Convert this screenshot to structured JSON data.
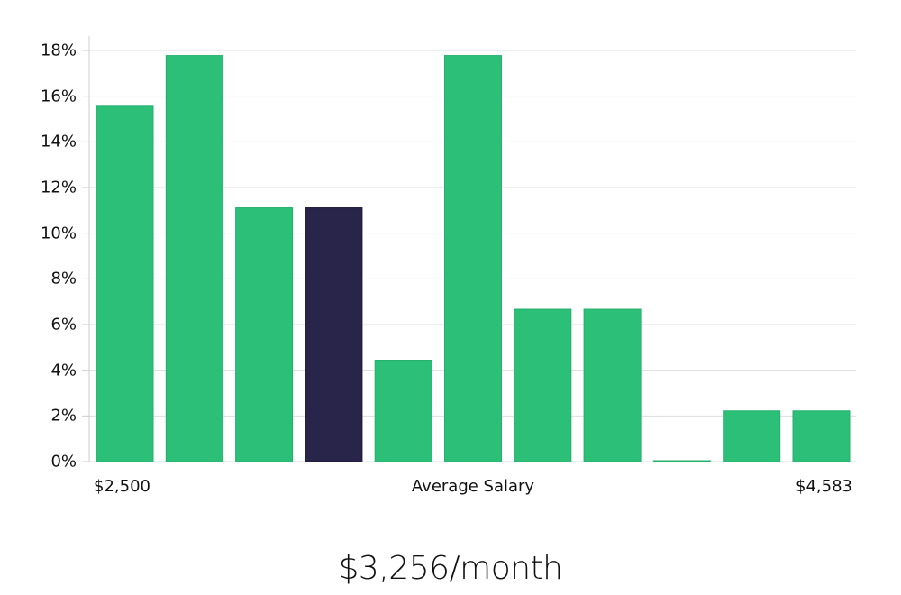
{
  "chart_data": {
    "type": "bar",
    "title": "",
    "xlabel": "Average Salary",
    "ylabel": "",
    "x_range_labels": {
      "min": "$2,500",
      "max": "$4,583"
    },
    "categories": [
      "bin1",
      "bin2",
      "bin3",
      "bin4",
      "bin5",
      "bin6",
      "bin7",
      "bin8",
      "bin9",
      "bin10",
      "bin11"
    ],
    "values": [
      15.56,
      17.78,
      11.11,
      11.11,
      4.44,
      17.78,
      6.67,
      6.67,
      0.0,
      2.22,
      2.22
    ],
    "highlight_index": 3,
    "ylim": [
      0,
      18
    ],
    "yticks": [
      0,
      2,
      4,
      6,
      8,
      10,
      12,
      14,
      16,
      18
    ],
    "ytick_labels": [
      "0%",
      "2%",
      "4%",
      "6%",
      "8%",
      "10%",
      "12%",
      "14%",
      "16%",
      "18%"
    ],
    "grid": true,
    "legend": null,
    "colors": {
      "bar": "#2bbf77",
      "highlight": "#29244a",
      "grid": "#dddddd",
      "axis": "#cccccc"
    }
  },
  "axis": {
    "x_min_label": "$2,500",
    "x_center_label": "Average Salary",
    "x_max_label": "$4,583"
  },
  "summary": {
    "value": "$3,256/month"
  }
}
